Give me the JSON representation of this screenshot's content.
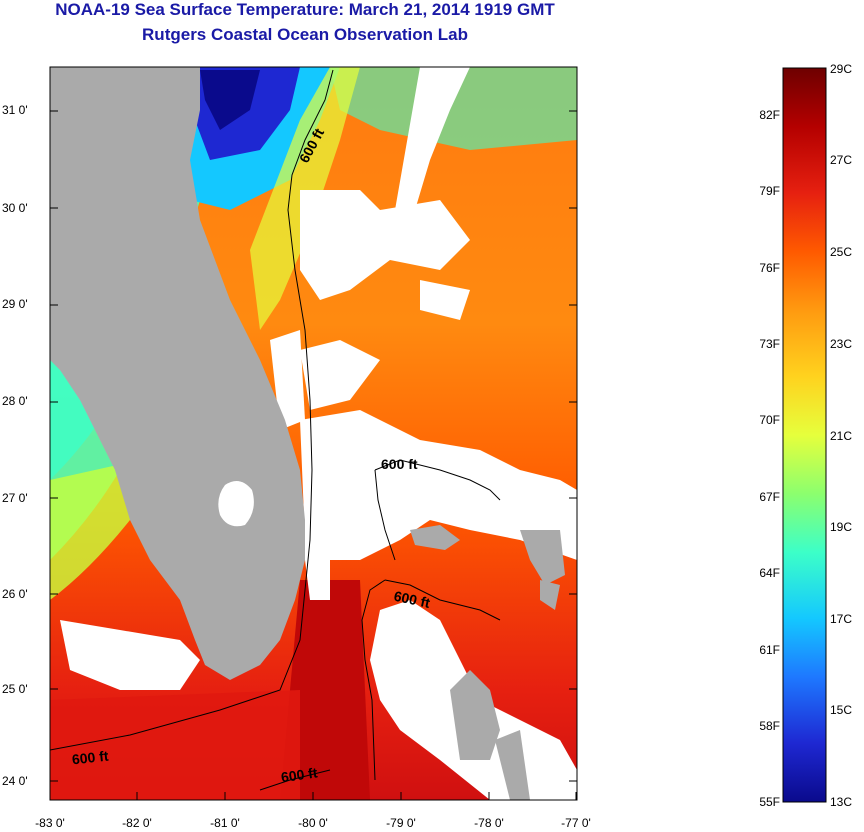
{
  "title": "NOAA-19 Sea Surface Temperature:  March 21, 2014 1919 GMT",
  "subtitle": "Rutgers Coastal Ocean Observation Lab",
  "latitude_labels": [
    "31 0'",
    "30 0'",
    "29 0'",
    "28 0'",
    "27 0'",
    "26 0'",
    "25 0'",
    "24 0'"
  ],
  "longitude_labels": [
    "-83 0'",
    "-82 0'",
    "-81 0'",
    "-80 0'",
    "-79 0'",
    "-78 0'",
    "-77 0'"
  ],
  "contour_label": "600 ft",
  "colorbar": {
    "fahrenheit_labels": [
      "82F",
      "79F",
      "76F",
      "73F",
      "70F",
      "67F",
      "64F",
      "61F",
      "58F",
      "55F"
    ],
    "celsius_labels": [
      "29C",
      "27C",
      "25C",
      "23C",
      "21C",
      "19C",
      "17C",
      "15C",
      "13C"
    ],
    "colors": [
      "#6e0000",
      "#b40000",
      "#e62010",
      "#ff5a00",
      "#ff9a10",
      "#ffd21e",
      "#e6ff3c",
      "#8cff6e",
      "#3cffc8",
      "#14c8ff",
      "#1e78ff",
      "#1e28d2",
      "#0a0a8c"
    ]
  },
  "colors": {
    "land": "#aaaaaa",
    "cloud": "#ffffff",
    "title": "#1a1aa6"
  }
}
